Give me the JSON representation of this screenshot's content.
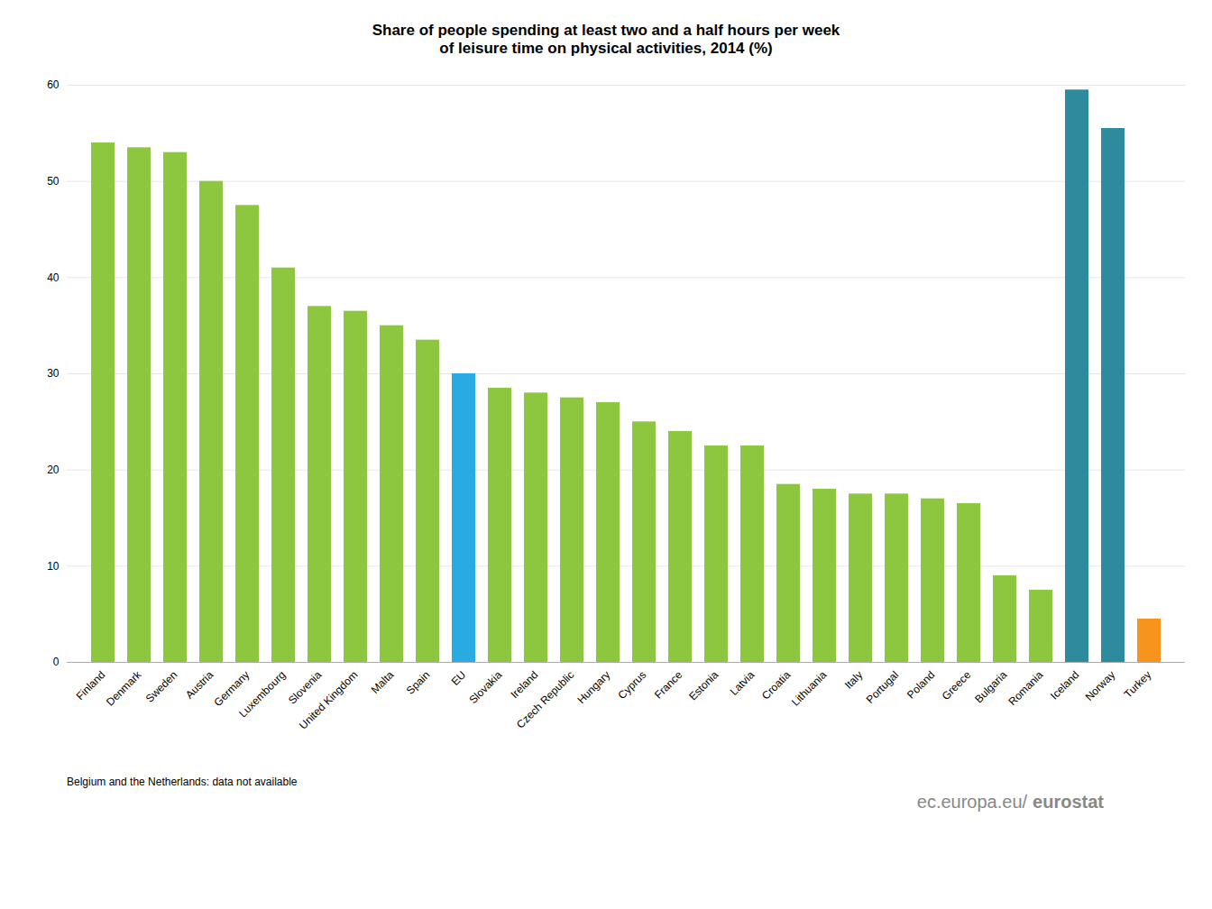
{
  "chart_data": {
    "type": "bar",
    "title": "Share of people spending at least two and a half hours per week\nof leisure time on physical activities, 2014 (%)",
    "categories": [
      "Finland",
      "Denmark",
      "Sweden",
      "Austria",
      "Germany",
      "Luxembourg",
      "Slovenia",
      "United Kingdom",
      "Malta",
      "Spain",
      "EU",
      "Slovakia",
      "Ireland",
      "Czech Republic",
      "Hungary",
      "Cyprus",
      "France",
      "Estonia",
      "Latvia",
      "Croatia",
      "Lithuania",
      "Italy",
      "Portugal",
      "Poland",
      "Greece",
      "Bulgaria",
      "Romania",
      "Iceland",
      "Norway",
      "Turkey"
    ],
    "values": [
      54.0,
      53.5,
      53.0,
      50.0,
      47.5,
      41.0,
      37.0,
      36.5,
      35.0,
      33.5,
      30.0,
      28.5,
      28.0,
      27.5,
      27.0,
      25.0,
      24.0,
      22.5,
      22.5,
      18.5,
      18.0,
      17.5,
      17.5,
      17.0,
      16.5,
      9.0,
      7.5,
      59.5,
      55.5,
      4.5
    ],
    "colors": [
      "#8dc63f",
      "#8dc63f",
      "#8dc63f",
      "#8dc63f",
      "#8dc63f",
      "#8dc63f",
      "#8dc63f",
      "#8dc63f",
      "#8dc63f",
      "#8dc63f",
      "#29abe2",
      "#8dc63f",
      "#8dc63f",
      "#8dc63f",
      "#8dc63f",
      "#8dc63f",
      "#8dc63f",
      "#8dc63f",
      "#8dc63f",
      "#8dc63f",
      "#8dc63f",
      "#8dc63f",
      "#8dc63f",
      "#8dc63f",
      "#8dc63f",
      "#8dc63f",
      "#8dc63f",
      "#2e8b9e",
      "#2e8b9e",
      "#f7941d"
    ],
    "ylim": [
      0,
      60
    ],
    "yticks": [
      0,
      10,
      20,
      30,
      40,
      50,
      60
    ],
    "grid": true,
    "annotations": [
      "Belgium and the Netherlands:  data not available",
      "ec.europa.eu/",
      "eurostat"
    ]
  }
}
